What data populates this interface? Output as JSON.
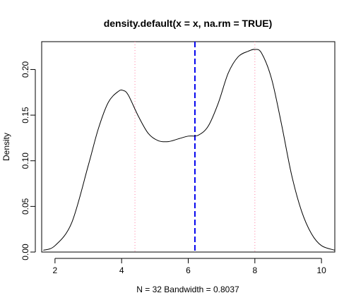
{
  "chart_data": {
    "type": "line",
    "title": "density.default(x = x, na.rm = TRUE)",
    "xlabel": "N = 32   Bandwidth = 0.8037",
    "ylabel": "Density",
    "xlim": [
      1.6,
      10.4
    ],
    "ylim": [
      0,
      0.222
    ],
    "x_ticks": [
      "2",
      "4",
      "6",
      "8",
      "10"
    ],
    "y_ticks": [
      "0.00",
      "0.05",
      "0.10",
      "0.15",
      "0.20"
    ],
    "grid": false,
    "series": [
      {
        "x": [
          1.65,
          2.0,
          2.5,
          3.0,
          3.3,
          3.6,
          3.9,
          4.05,
          4.2,
          4.5,
          4.8,
          5.1,
          5.4,
          5.7,
          6.0,
          6.3,
          6.6,
          6.9,
          7.2,
          7.5,
          7.8,
          8.0,
          8.2,
          8.5,
          8.8,
          9.1,
          9.4,
          9.7,
          10.0,
          10.4
        ],
        "y": [
          0.002,
          0.007,
          0.032,
          0.095,
          0.135,
          0.164,
          0.176,
          0.177,
          0.172,
          0.149,
          0.13,
          0.122,
          0.121,
          0.124,
          0.127,
          0.128,
          0.138,
          0.163,
          0.196,
          0.214,
          0.22,
          0.222,
          0.218,
          0.19,
          0.14,
          0.085,
          0.045,
          0.02,
          0.007,
          0.002
        ],
        "color": "#000000"
      }
    ],
    "vlines": [
      {
        "x": 4.4,
        "color": "#ff80a0",
        "style": "dotted"
      },
      {
        "x": 6.2,
        "color": "#0000ee",
        "style": "dashed"
      },
      {
        "x": 8.0,
        "color": "#ff80a0",
        "style": "dotted"
      }
    ]
  }
}
